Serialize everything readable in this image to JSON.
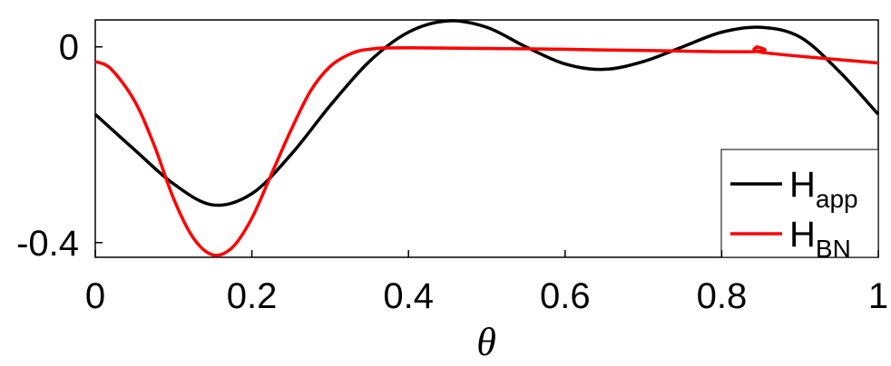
{
  "chart_data": {
    "type": "line",
    "x_label": "θ",
    "xlim": [
      0,
      1
    ],
    "xticks": [
      0,
      0.2,
      0.4,
      0.6,
      0.8,
      1
    ],
    "ylim": [
      -0.43,
      0.055
    ],
    "yticks": [
      0,
      -0.4
    ],
    "legend": "lower right",
    "series": [
      {
        "name": "H",
        "subscript": "app",
        "color": "#000000",
        "x": [
          0,
          0.05,
          0.1,
          0.15,
          0.2,
          0.25,
          0.3,
          0.35,
          0.4,
          0.45,
          0.5,
          0.55,
          0.6,
          0.65,
          0.7,
          0.75,
          0.8,
          0.85,
          0.9,
          0.95,
          1
        ],
        "values": [
          -0.138,
          -0.21,
          -0.28,
          -0.323,
          -0.3,
          -0.22,
          -0.12,
          -0.03,
          0.03,
          0.053,
          0.04,
          0.0,
          -0.035,
          -0.046,
          -0.03,
          0.0,
          0.03,
          0.04,
          0.02,
          -0.05,
          -0.138
        ]
      },
      {
        "name": "H",
        "subscript": "BN",
        "color": "#ff0000",
        "x": [
          0,
          0.02,
          0.05,
          0.075,
          0.1,
          0.125,
          0.15,
          0.175,
          0.2,
          0.225,
          0.25,
          0.275,
          0.3,
          0.325,
          0.35,
          0.4,
          0.6,
          0.835,
          0.845,
          0.855,
          1
        ],
        "values": [
          -0.03,
          -0.045,
          -0.11,
          -0.2,
          -0.31,
          -0.39,
          -0.425,
          -0.41,
          -0.35,
          -0.26,
          -0.17,
          -0.09,
          -0.04,
          -0.015,
          -0.005,
          -0.002,
          -0.005,
          -0.01,
          0.0,
          -0.012,
          -0.033
        ]
      }
    ]
  }
}
